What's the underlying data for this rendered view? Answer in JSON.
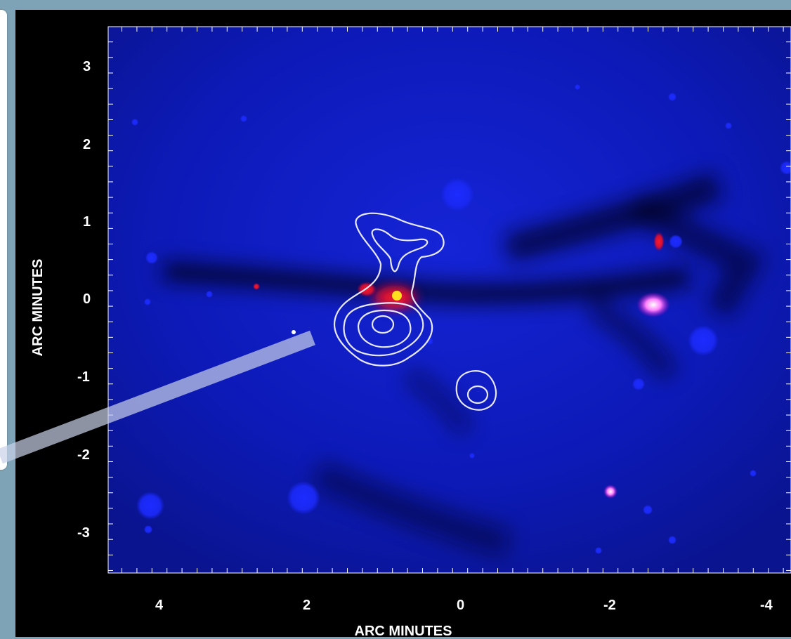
{
  "figure": {
    "xlabel": "ARC MINUTES",
    "ylabel": "ARC MINUTES",
    "x_ticks": [
      "4",
      "2",
      "0",
      "-2",
      "-4"
    ],
    "y_ticks": [
      "3",
      "2",
      "1",
      "0",
      "-1",
      "-2",
      "-3"
    ]
  },
  "colors": {
    "background": "#7fa3b6",
    "image_blue": "#0c1cbf",
    "red_emission": "#ff2020",
    "contour": "#e8e8ff",
    "frame": "#000000"
  }
}
